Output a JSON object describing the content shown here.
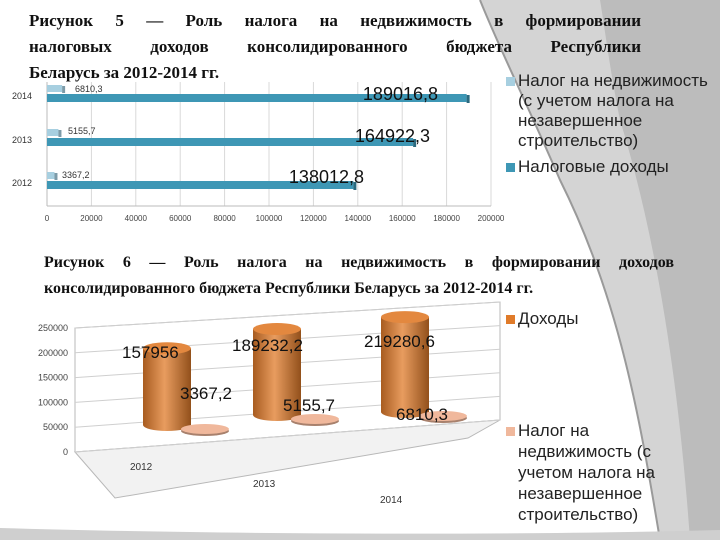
{
  "slide": {
    "caption5": [
      "Рисунок 5 — Роль налога на недвижимость в формировании",
      "налоговых доходов консолидированного бюджета Республики",
      "Беларусь за 2012-2014 гг."
    ],
    "caption6": [
      "Рисунок 6 — Роль налога на недвижимость в формировании доходов",
      "консолидированного бюджета Республики Беларусь за 2012-2014 гг."
    ]
  },
  "chart_data": [
    {
      "type": "bar",
      "orientation": "horizontal",
      "categories": [
        "2014",
        "2013",
        "2012"
      ],
      "series": [
        {
          "name": "Налог на недвижимость (с учетом налога на незавершенное строительство)",
          "values": [
            6810.3,
            5155.7,
            3367.2
          ],
          "labels": [
            "6810,3",
            "5155,7",
            "3367,2"
          ],
          "color": "#a7cfe0"
        },
        {
          "name": "Налоговые доходы",
          "values": [
            189016.8,
            164922.3,
            138012.8
          ],
          "labels": [
            "189016,8",
            "164922,3",
            "138012,8"
          ],
          "color": "#3e97b5"
        }
      ],
      "xlim": [
        0,
        200000
      ],
      "xticks": [
        0,
        20000,
        40000,
        60000,
        80000,
        100000,
        120000,
        140000,
        160000,
        180000,
        200000
      ],
      "legend_lines": [
        [
          "Налог на недвижимость",
          "(с учетом налога на",
          "незавершенное",
          "строительство)"
        ],
        [
          "Налоговые доходы"
        ]
      ],
      "legend_position": "right"
    },
    {
      "type": "bar",
      "style": "3d-cylinder",
      "categories": [
        "2012",
        "2013",
        "2014"
      ],
      "series": [
        {
          "name": "Доходы",
          "values": [
            157956,
            189232.2,
            219280.6
          ],
          "labels": [
            "157956",
            "189232,2",
            "219280,6"
          ],
          "color": "#e07b2a"
        },
        {
          "name": "Налог на недвижимость (с учетом налога на незавершенное строительство)",
          "values": [
            3367.2,
            5155.7,
            6810.3
          ],
          "labels": [
            "3367,2",
            "5155,7",
            "6810,3"
          ],
          "color": "#f0b89c"
        }
      ],
      "ylim": [
        0,
        250000
      ],
      "yticks": [
        "0",
        "50000",
        "100000",
        "150000",
        "200000",
        "250000"
      ],
      "legend_lines": [
        [
          "Доходы"
        ],
        [
          "Налог на",
          "недвижимость (с",
          "учетом налога на",
          "незавершенное",
          "строительство)"
        ]
      ],
      "legend_position": "right"
    }
  ]
}
